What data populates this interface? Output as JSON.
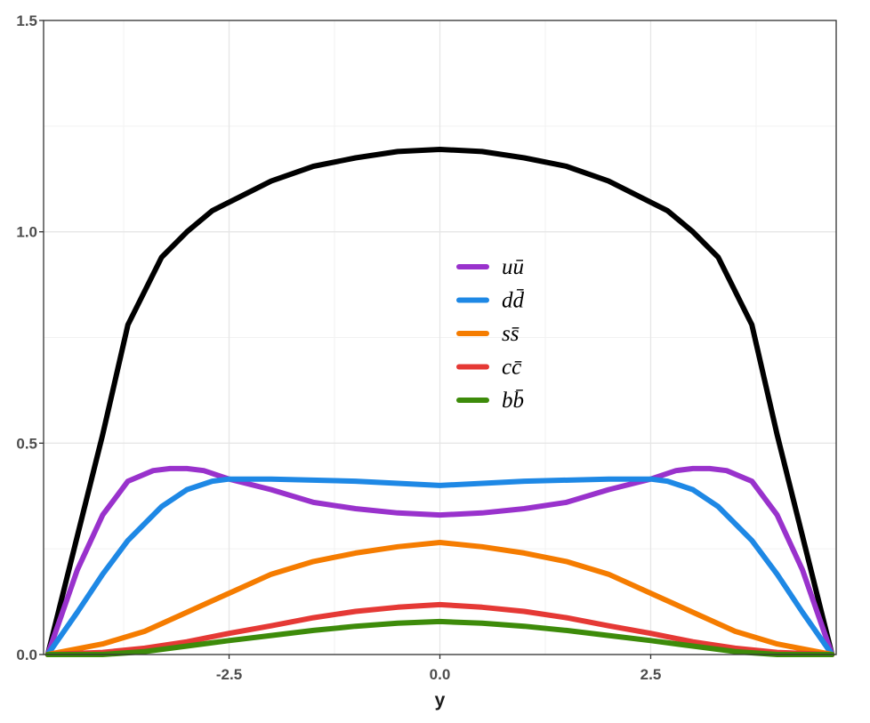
{
  "chart_data": {
    "type": "line",
    "xlabel": "y",
    "ylabel": "",
    "xlim": [
      -4.7,
      4.7
    ],
    "ylim": [
      0,
      1.5
    ],
    "x_ticks": [
      -2.5,
      0,
      2.5
    ],
    "x_tick_labels": [
      "-2.5",
      "0.0",
      "2.5"
    ],
    "y_ticks": [
      0,
      0.5,
      1.0,
      1.5
    ],
    "y_tick_labels": [
      "0.0",
      "0.5",
      "1.0",
      "1.5"
    ],
    "grid": true,
    "legend_position": "center",
    "series": [
      {
        "color": "#000000",
        "x": [
          -4.65,
          -4.3,
          -4,
          -3.7,
          -3.3,
          -3,
          -2.7,
          -2.5,
          -2,
          -1.5,
          -1,
          -0.5,
          0,
          0.5,
          1,
          1.5,
          2,
          2.5,
          2.7,
          3,
          3.3,
          3.7,
          4,
          4.3,
          4.65
        ],
        "y": [
          0,
          0.28,
          0.52,
          0.78,
          0.94,
          1.0,
          1.05,
          1.07,
          1.12,
          1.155,
          1.175,
          1.19,
          1.195,
          1.19,
          1.175,
          1.155,
          1.12,
          1.07,
          1.05,
          1.0,
          0.94,
          0.78,
          0.52,
          0.28,
          0
        ]
      },
      {
        "name": "uū",
        "color": "#9932CC",
        "x": [
          -4.65,
          -4.3,
          -4,
          -3.7,
          -3.4,
          -3.2,
          -3,
          -2.8,
          -2.5,
          -2,
          -1.5,
          -1,
          -0.5,
          0,
          0.5,
          1,
          1.5,
          2,
          2.5,
          2.8,
          3,
          3.2,
          3.4,
          3.7,
          4,
          4.3,
          4.65
        ],
        "y": [
          0,
          0.2,
          0.33,
          0.41,
          0.435,
          0.44,
          0.44,
          0.435,
          0.415,
          0.39,
          0.36,
          0.345,
          0.335,
          0.33,
          0.335,
          0.345,
          0.36,
          0.39,
          0.415,
          0.435,
          0.44,
          0.44,
          0.435,
          0.41,
          0.33,
          0.2,
          0
        ]
      },
      {
        "name": "dd̄",
        "color": "#1E88E5",
        "x": [
          -4.65,
          -4.3,
          -4,
          -3.7,
          -3.3,
          -3,
          -2.7,
          -2.5,
          -2,
          -1,
          0,
          1,
          2,
          2.5,
          2.7,
          3,
          3.3,
          3.7,
          4,
          4.3,
          4.65
        ],
        "y": [
          0,
          0.1,
          0.19,
          0.27,
          0.35,
          0.39,
          0.41,
          0.415,
          0.415,
          0.41,
          0.4,
          0.41,
          0.415,
          0.415,
          0.41,
          0.39,
          0.35,
          0.27,
          0.19,
          0.1,
          0
        ]
      },
      {
        "name": "ss̄",
        "color": "#F57C00",
        "x": [
          -4.65,
          -4,
          -3.5,
          -3,
          -2.5,
          -2,
          -1.5,
          -1,
          -0.5,
          0,
          0.5,
          1,
          1.5,
          2,
          2.5,
          3,
          3.5,
          4,
          4.65
        ],
        "y": [
          0,
          0.025,
          0.055,
          0.1,
          0.145,
          0.19,
          0.22,
          0.24,
          0.255,
          0.265,
          0.255,
          0.24,
          0.22,
          0.19,
          0.145,
          0.1,
          0.055,
          0.025,
          0
        ]
      },
      {
        "name": "cc̄",
        "color": "#E53935",
        "x": [
          -4.65,
          -4,
          -3.5,
          -3,
          -2.5,
          -2,
          -1.5,
          -1,
          -0.5,
          0,
          0.5,
          1,
          1.5,
          2,
          2.5,
          3,
          3.5,
          4,
          4.65
        ],
        "y": [
          0,
          0.005,
          0.015,
          0.03,
          0.05,
          0.068,
          0.087,
          0.102,
          0.112,
          0.118,
          0.112,
          0.102,
          0.087,
          0.068,
          0.05,
          0.03,
          0.015,
          0.005,
          0
        ]
      },
      {
        "name": "bb̄",
        "color": "#3D8B0A",
        "x": [
          -4.65,
          -4,
          -3.5,
          -3,
          -2.5,
          -2,
          -1.5,
          -1,
          -0.5,
          0,
          0.5,
          1,
          1.5,
          2,
          2.5,
          3,
          3.5,
          4,
          4.65
        ],
        "y": [
          0,
          0,
          0.007,
          0.02,
          0.033,
          0.045,
          0.057,
          0.067,
          0.074,
          0.078,
          0.074,
          0.067,
          0.057,
          0.045,
          0.033,
          0.02,
          0.007,
          0,
          0
        ]
      }
    ]
  }
}
